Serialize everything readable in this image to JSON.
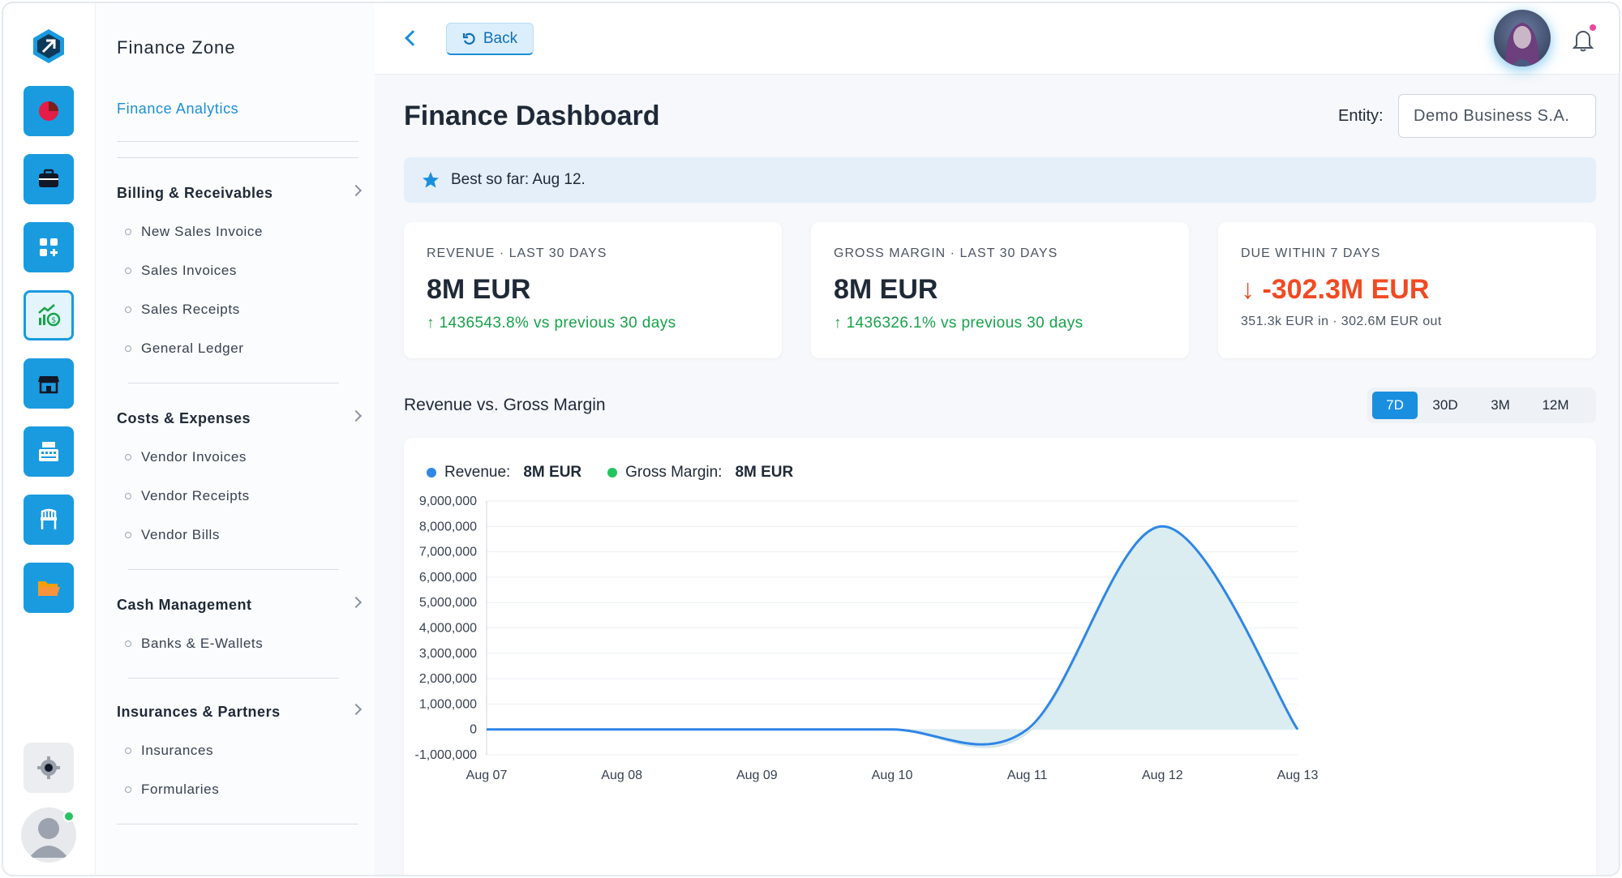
{
  "sidebar": {
    "zone_title": "Finance Zone",
    "active_link": "Finance Analytics",
    "groups": [
      {
        "title": "Billing & Receivables",
        "items": [
          "New Sales Invoice",
          "Sales Invoices",
          "Sales Receipts",
          "General Ledger"
        ]
      },
      {
        "title": "Costs & Expenses",
        "items": [
          "Vendor Invoices",
          "Vendor Receipts",
          "Vendor Bills"
        ]
      },
      {
        "title": "Cash Management",
        "items": [
          "Banks & E-Wallets"
        ]
      },
      {
        "title": "Insurances & Partners",
        "items": [
          "Insurances",
          "Formularies"
        ]
      }
    ]
  },
  "rail": {
    "icons": [
      "pie-chart-icon",
      "briefcase-icon",
      "apps-add-icon",
      "money-growth-icon",
      "store-icon",
      "cash-register-icon",
      "chair-icon",
      "folder-icon"
    ],
    "active_index": 3,
    "settings_icon": "gear-icon",
    "user_status": "online"
  },
  "topbar": {
    "back_label": "Back"
  },
  "page": {
    "title": "Finance Dashboard",
    "entity_label": "Entity:",
    "entity_value": "Demo Business S.A.",
    "banner_text": "Best so far: Aug 12."
  },
  "cards": [
    {
      "label": "REVENUE · LAST 30 DAYS",
      "value": "8M EUR",
      "sub": "1436543.8% vs previous 30 days",
      "trend": "up"
    },
    {
      "label": "GROSS MARGIN · LAST 30 DAYS",
      "value": "8M EUR",
      "sub": "1436326.1% vs previous 30 days",
      "trend": "up"
    },
    {
      "label": "DUE WITHIN 7 DAYS",
      "value": "-302.3M EUR",
      "sub": "351.3k EUR in · 302.6M EUR out",
      "trend": "down"
    }
  ],
  "chart_section": {
    "title": "Revenue vs. Gross Margin",
    "ranges": [
      "7D",
      "30D",
      "3M",
      "12M"
    ],
    "active_range": "7D"
  },
  "legend": [
    {
      "name": "Revenue:",
      "value": "8M EUR",
      "color": "#2f86e6"
    },
    {
      "name": "Gross Margin:",
      "value": "8M EUR",
      "color": "#22c55e"
    }
  ],
  "chart_data": {
    "type": "area",
    "x": [
      "Aug 07",
      "Aug 08",
      "Aug 09",
      "Aug 10",
      "Aug 11",
      "Aug 12",
      "Aug 13"
    ],
    "series": [
      {
        "name": "Revenue",
        "values": [
          0,
          0,
          0,
          0,
          0,
          8000000,
          0
        ]
      },
      {
        "name": "Gross Margin",
        "values": [
          0,
          0,
          0,
          0,
          -150000,
          8000000,
          0
        ]
      }
    ],
    "yticks": [
      "9,000,000",
      "8,000,000",
      "7,000,000",
      "6,000,000",
      "5,000,000",
      "4,000,000",
      "3,000,000",
      "2,000,000",
      "1,000,000",
      "0",
      "-1,000,000"
    ],
    "ylim": [
      -1000000,
      9000000
    ],
    "grid": true,
    "colors": {
      "line": "#2f86e6",
      "fill": "#d7ebee"
    }
  }
}
